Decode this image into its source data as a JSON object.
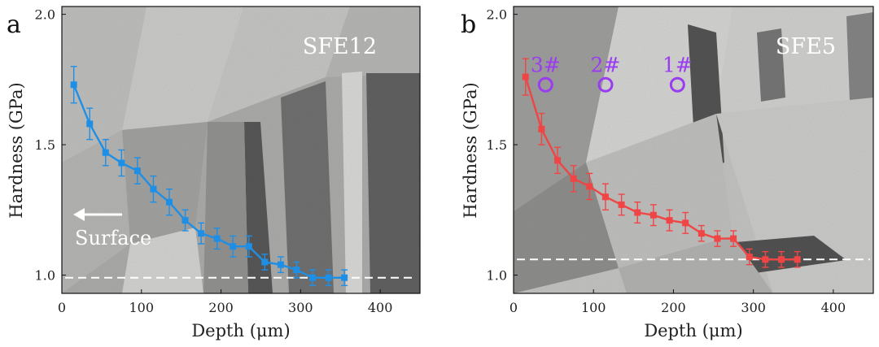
{
  "chart_data": [
    {
      "type": "line",
      "panel_label": "a",
      "sample_label": "SFE12",
      "xlabel": "Depth (μm)",
      "ylabel": "Hardness (GPa)",
      "xlim": [
        0,
        450
      ],
      "ylim": [
        0.93,
        2.03
      ],
      "x_ticks": [
        "0",
        "100",
        "200",
        "300",
        "400"
      ],
      "y_ticks": [
        "1.0",
        "1.5",
        "2.0"
      ],
      "series_color": "#1f8fe6",
      "reference_line": 0.99,
      "annotation": {
        "text": "Surface",
        "arrow": "left"
      },
      "x": [
        15,
        35,
        55,
        75,
        95,
        115,
        135,
        155,
        175,
        195,
        215,
        235,
        255,
        275,
        295,
        315,
        335,
        355
      ],
      "y": [
        1.73,
        1.58,
        1.47,
        1.43,
        1.4,
        1.33,
        1.28,
        1.21,
        1.16,
        1.14,
        1.11,
        1.11,
        1.05,
        1.04,
        1.02,
        0.99,
        0.99,
        0.99
      ],
      "yerr": [
        0.07,
        0.06,
        0.05,
        0.05,
        0.05,
        0.05,
        0.05,
        0.04,
        0.04,
        0.04,
        0.04,
        0.04,
        0.03,
        0.03,
        0.03,
        0.03,
        0.03,
        0.03
      ]
    },
    {
      "type": "line",
      "panel_label": "b",
      "sample_label": "SFE5",
      "xlabel": "Depth (μm)",
      "ylabel": "Hardness (GPa)",
      "xlim": [
        0,
        450
      ],
      "ylim": [
        0.93,
        2.03
      ],
      "x_ticks": [
        "0",
        "100",
        "200",
        "300",
        "400"
      ],
      "y_ticks": [
        "1.0",
        "1.5",
        "2.0"
      ],
      "series_color": "#f04545",
      "reference_line": 1.06,
      "position_markers": [
        {
          "label": "3#",
          "x": 40,
          "y": 1.73
        },
        {
          "label": "2#",
          "x": 115,
          "y": 1.73
        },
        {
          "label": "1#",
          "x": 205,
          "y": 1.73
        }
      ],
      "marker_color": "#9a3cf0",
      "x": [
        15,
        35,
        55,
        75,
        95,
        115,
        135,
        155,
        175,
        195,
        215,
        235,
        255,
        275,
        295,
        315,
        335,
        355
      ],
      "y": [
        1.76,
        1.56,
        1.44,
        1.37,
        1.34,
        1.3,
        1.27,
        1.24,
        1.23,
        1.21,
        1.2,
        1.16,
        1.14,
        1.14,
        1.07,
        1.06,
        1.06,
        1.06
      ],
      "yerr": [
        0.07,
        0.06,
        0.05,
        0.05,
        0.05,
        0.05,
        0.04,
        0.04,
        0.04,
        0.04,
        0.04,
        0.03,
        0.03,
        0.03,
        0.03,
        0.03,
        0.03,
        0.03
      ]
    }
  ]
}
